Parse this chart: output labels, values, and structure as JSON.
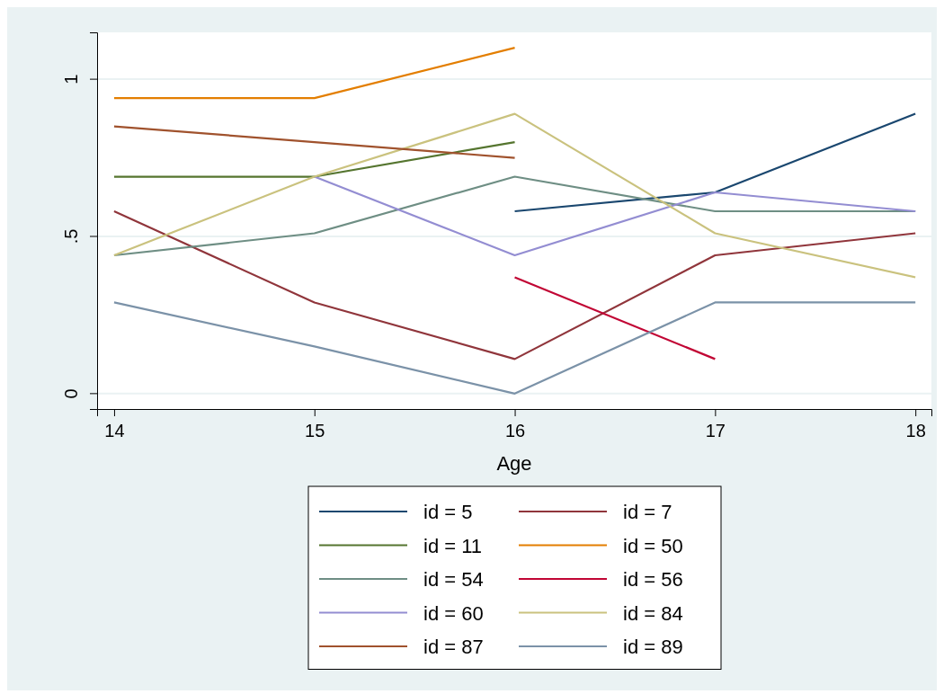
{
  "chart_data": {
    "type": "line",
    "xlabel": "Age",
    "xlim": [
      13.915,
      18.08
    ],
    "xticks": [
      14,
      15,
      16,
      17,
      18
    ],
    "ylim": [
      -0.049,
      1.149
    ],
    "yticks": [
      {
        "value": 0,
        "label": "0"
      },
      {
        "value": 0.5,
        "label": ".5"
      },
      {
        "value": 1,
        "label": "1"
      }
    ],
    "grid": "y",
    "legend": "bottom",
    "marker": "none",
    "line_style": "solid",
    "series": [
      {
        "name": "id = 5",
        "color": "#1a476f",
        "x": [
          16,
          17,
          18
        ],
        "values": [
          0.58,
          0.64,
          0.89
        ]
      },
      {
        "name": "id = 7",
        "color": "#90353b",
        "x": [
          14,
          15,
          16,
          17,
          18
        ],
        "values": [
          0.58,
          0.29,
          0.11,
          0.44,
          0.51
        ]
      },
      {
        "name": "id = 11",
        "color": "#55752f",
        "x": [
          14,
          15,
          16
        ],
        "values": [
          0.69,
          0.69,
          0.8
        ]
      },
      {
        "name": "id = 50",
        "color": "#e37e00",
        "x": [
          14,
          15,
          16
        ],
        "values": [
          0.94,
          0.94,
          1.1
        ]
      },
      {
        "name": "id = 54",
        "color": "#6e8e84",
        "x": [
          14,
          15,
          16,
          17,
          18
        ],
        "values": [
          0.44,
          0.51,
          0.69,
          0.58,
          0.58
        ]
      },
      {
        "name": "id = 56",
        "color": "#c10534",
        "x": [
          16,
          17
        ],
        "values": [
          0.37,
          0.11
        ]
      },
      {
        "name": "id = 60",
        "color": "#938dd2",
        "x": [
          15,
          16,
          17,
          18
        ],
        "values": [
          0.69,
          0.44,
          0.64,
          0.58
        ]
      },
      {
        "name": "id = 84",
        "color": "#cac27e",
        "x": [
          14,
          15,
          16,
          17,
          18
        ],
        "values": [
          0.44,
          0.69,
          0.89,
          0.51,
          0.37
        ]
      },
      {
        "name": "id = 87",
        "color": "#a0522d",
        "x": [
          14,
          15,
          16
        ],
        "values": [
          0.85,
          0.8,
          0.75
        ]
      },
      {
        "name": "id = 89",
        "color": "#7b92a8",
        "x": [
          14,
          15,
          16,
          17,
          18
        ],
        "values": [
          0.29,
          0.15,
          0,
          0.29,
          0.29
        ]
      }
    ]
  }
}
